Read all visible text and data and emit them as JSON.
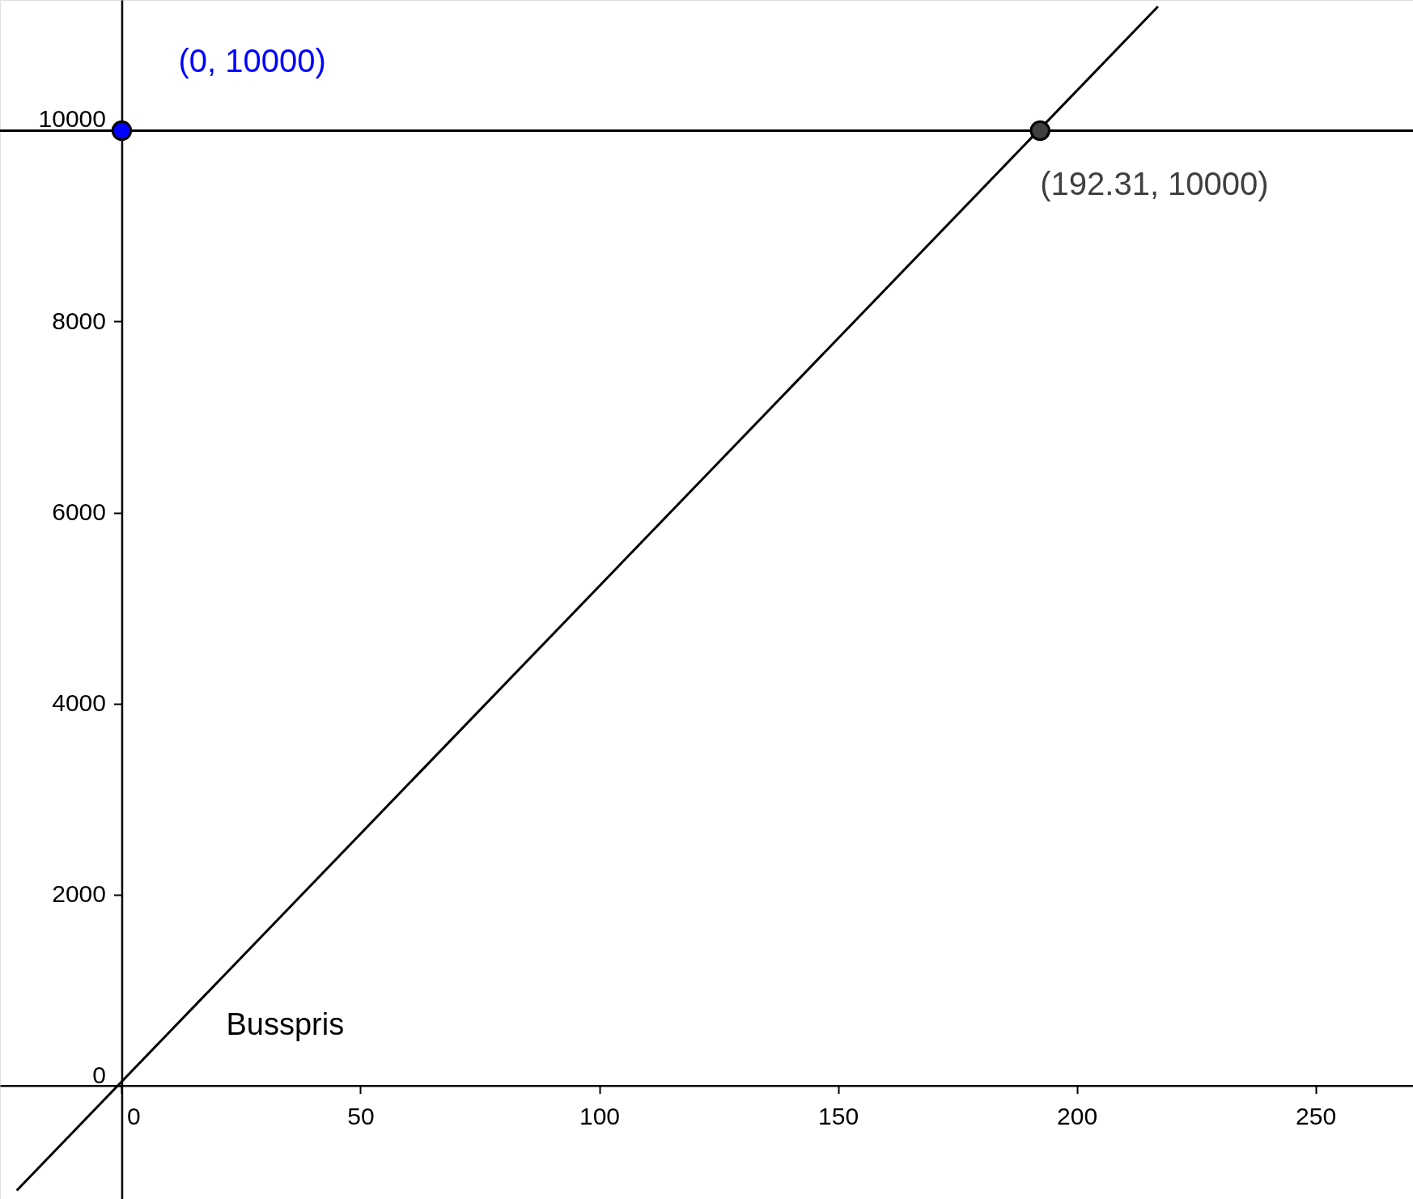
{
  "chart_data": {
    "type": "line",
    "series": [
      {
        "name": "Busspris",
        "color": "#000000",
        "x": [
          -22,
          217
        ],
        "values": [
          -1100,
          11300
        ]
      },
      {
        "type": "scatter",
        "marker": "circle",
        "x": [
          0,
          192.31
        ],
        "values": [
          10000,
          10000
        ],
        "colors": [
          "#0000ff",
          "#404040"
        ]
      }
    ],
    "ref_lines": [
      {
        "axis": "y",
        "value": 10000,
        "color": "#000000"
      }
    ],
    "annotations": [
      {
        "text": "(0, 10000)",
        "x": 0,
        "y": 10000
      },
      {
        "text": "(192.31, 10000)",
        "x": 192.31,
        "y": 10000
      }
    ],
    "xlim": [
      -25.5,
      270.4
    ],
    "ylim": [
      -1189,
      11368
    ],
    "xticks": [
      0,
      50,
      100,
      150,
      200,
      250
    ],
    "yticks": [
      0,
      2000,
      4000,
      6000,
      8000,
      10000
    ],
    "grid": false,
    "line_style": "solid"
  }
}
